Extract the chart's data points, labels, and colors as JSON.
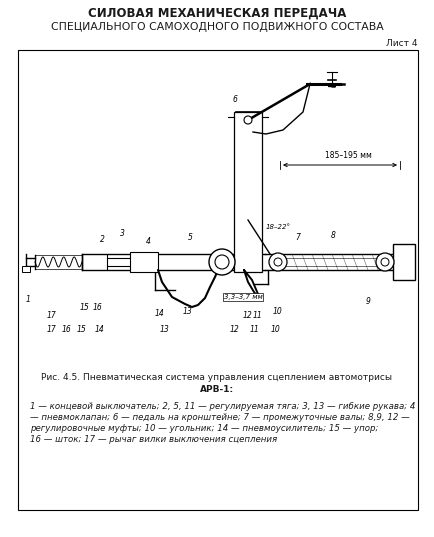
{
  "title_line1": "СИЛОВАЯ МЕХАНИЧЕСКАЯ ПЕРЕДАЧА",
  "title_line2": "СПЕЦИАЛЬНОГО САМОХОДНОГО ПОДВИЖНОГО СОСТАВА",
  "sheet_label": "Лист 4",
  "fig_caption_line1": "Рис. 4.5. Пневматическая система управления сцеплением автомотрисы",
  "fig_caption_line2": "АРВ-1:",
  "legend_line1": "1 — концевой выключатель; 2, 5, 11 — регулируемая тяга; 3, 13 — гибкие рукава; 4",
  "legend_line2": "— пневмоклапан; 6 — педаль на кронштейне; 7 — промежуточные валы; 8,9, 12 —",
  "legend_line3": "регулировочные муфты; 10 — угольник; 14 — пневмоусилитель; 15 — упор;",
  "legend_line4": "16 — шток; 17 — рычаг вилки выключения сцепления",
  "bg_color": "#ffffff",
  "border_color": "#000000",
  "text_color": "#1a1a1a",
  "title1_fontsize": 8.5,
  "title2_fontsize": 7.8,
  "sheet_fontsize": 6.5,
  "caption_fontsize": 6.5,
  "legend_fontsize": 6.2,
  "fig_width": 4.35,
  "fig_height": 5.37,
  "dpi": 100
}
